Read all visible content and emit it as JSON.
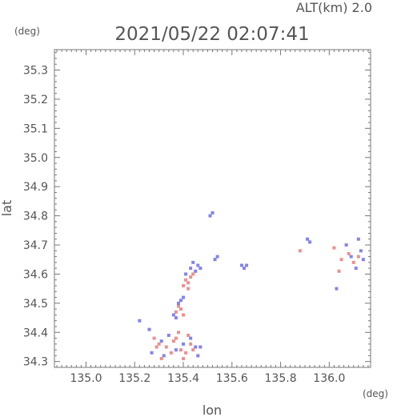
{
  "chart_data": {
    "type": "scatter",
    "header": {
      "altitude": "ALT(km) 2.0",
      "timestamp": "2021/05/22 02:07:41"
    },
    "xlabel": "lon",
    "ylabel": "lat",
    "x_unit": "(deg)",
    "y_unit": "(deg)",
    "xlim": [
      134.87,
      136.17
    ],
    "ylim": [
      34.28,
      35.37
    ],
    "x_ticks": [
      135.0,
      135.2,
      135.4,
      135.6,
      135.8,
      136.0
    ],
    "x_tick_labels": [
      "135.0",
      "135.2",
      "135.4",
      "135.6",
      "135.8",
      "136.0"
    ],
    "y_ticks": [
      34.3,
      34.4,
      34.5,
      34.6,
      34.7,
      34.8,
      34.9,
      35.0,
      35.1,
      35.2,
      35.3
    ],
    "y_tick_labels": [
      "34.3",
      "34.4",
      "34.5",
      "34.6",
      "34.7",
      "34.8",
      "34.9",
      "35.0",
      "35.1",
      "35.2",
      "35.3"
    ],
    "grid": false,
    "colors": {
      "positive": "#e86a6a",
      "negative": "#5a5ae8",
      "axis": "#777777",
      "text": "#555555"
    },
    "series": [
      {
        "color_key": "positive",
        "points": [
          [
            135.41,
            34.58
          ],
          [
            135.42,
            34.57
          ],
          [
            135.43,
            34.59
          ],
          [
            135.4,
            34.56
          ],
          [
            135.44,
            34.6
          ],
          [
            135.42,
            34.55
          ],
          [
            135.38,
            34.49
          ],
          [
            135.39,
            34.48
          ],
          [
            135.37,
            34.47
          ],
          [
            135.4,
            34.46
          ],
          [
            135.28,
            34.38
          ],
          [
            135.3,
            34.36
          ],
          [
            135.33,
            34.35
          ],
          [
            135.36,
            34.37
          ],
          [
            135.39,
            34.34
          ],
          [
            135.41,
            34.33
          ],
          [
            135.43,
            34.36
          ],
          [
            135.42,
            34.39
          ],
          [
            135.38,
            34.4
          ],
          [
            135.35,
            34.33
          ],
          [
            135.31,
            34.31
          ],
          [
            135.4,
            34.31
          ],
          [
            135.44,
            34.34
          ],
          [
            135.37,
            34.38
          ],
          [
            135.29,
            34.35
          ],
          [
            135.88,
            34.68
          ],
          [
            136.02,
            34.69
          ],
          [
            136.05,
            34.65
          ],
          [
            136.1,
            34.64
          ],
          [
            136.08,
            34.67
          ],
          [
            136.04,
            34.61
          ],
          [
            136.12,
            34.66
          ]
        ]
      },
      {
        "color_key": "negative",
        "points": [
          [
            135.52,
            34.81
          ],
          [
            135.51,
            34.8
          ],
          [
            135.54,
            34.66
          ],
          [
            135.53,
            34.65
          ],
          [
            135.43,
            34.62
          ],
          [
            135.45,
            34.61
          ],
          [
            135.46,
            34.63
          ],
          [
            135.41,
            34.6
          ],
          [
            135.44,
            34.64
          ],
          [
            135.47,
            34.62
          ],
          [
            135.39,
            34.51
          ],
          [
            135.4,
            34.52
          ],
          [
            135.38,
            34.5
          ],
          [
            135.37,
            34.45
          ],
          [
            135.36,
            34.46
          ],
          [
            135.22,
            34.44
          ],
          [
            135.26,
            34.41
          ],
          [
            135.31,
            34.37
          ],
          [
            135.34,
            34.39
          ],
          [
            135.37,
            34.34
          ],
          [
            135.4,
            34.36
          ],
          [
            135.43,
            34.38
          ],
          [
            135.45,
            34.35
          ],
          [
            135.32,
            34.32
          ],
          [
            135.46,
            34.32
          ],
          [
            135.47,
            34.35
          ],
          [
            135.27,
            34.33
          ],
          [
            135.64,
            34.63
          ],
          [
            135.65,
            34.62
          ],
          [
            135.66,
            34.63
          ],
          [
            135.91,
            34.72
          ],
          [
            135.92,
            34.71
          ],
          [
            136.03,
            34.55
          ],
          [
            136.09,
            34.66
          ],
          [
            136.11,
            34.62
          ],
          [
            136.13,
            34.68
          ],
          [
            136.14,
            34.65
          ],
          [
            136.07,
            34.7
          ],
          [
            136.12,
            34.72
          ]
        ]
      }
    ]
  }
}
